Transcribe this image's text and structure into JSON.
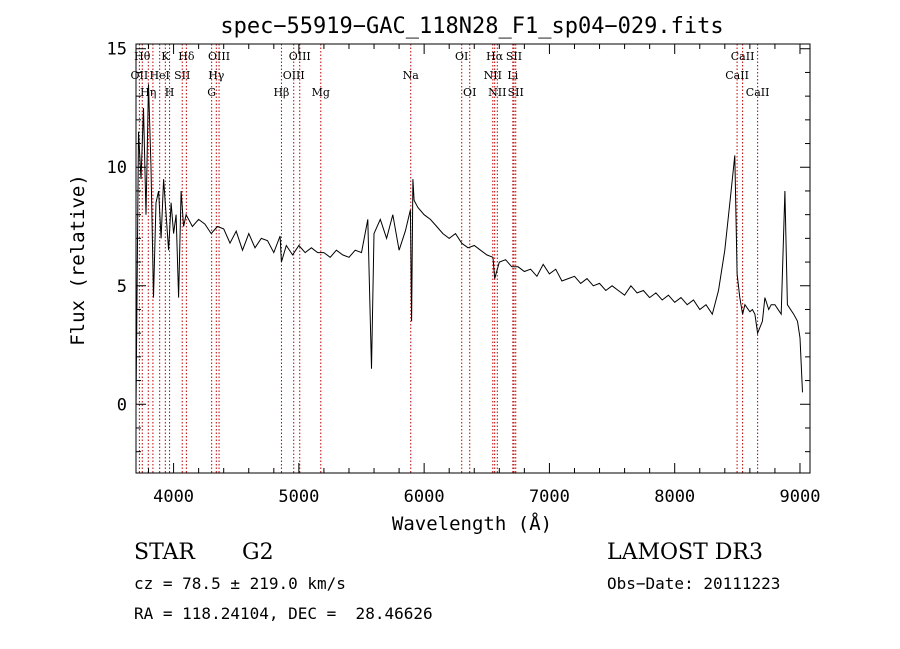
{
  "chart_data": {
    "type": "line",
    "title": "spec−55919−GAC_118N28_F1_sp04−029.fits",
    "xlabel": "Wavelength (Å)",
    "ylabel": "Flux (relative)",
    "xlim": [
      3700,
      9080
    ],
    "ylim": [
      -2.9,
      15.2
    ],
    "x_ticks": [
      4000,
      5000,
      6000,
      7000,
      8000,
      9000
    ],
    "x_tick_labels": [
      "4000",
      "5000",
      "6000",
      "7000",
      "8000",
      "9000"
    ],
    "y_ticks": [
      0,
      5,
      10,
      15
    ],
    "y_tick_labels": [
      "0",
      "5",
      "10",
      "15"
    ],
    "grid": false,
    "series": [
      {
        "x": [
          3700,
          3720,
          3740,
          3760,
          3780,
          3800,
          3820,
          3840,
          3860,
          3880,
          3900,
          3920,
          3940,
          3960,
          3980,
          4000,
          4020,
          4040,
          4060,
          4080,
          4100,
          4150,
          4200,
          4250,
          4300,
          4350,
          4400,
          4450,
          4500,
          4550,
          4600,
          4650,
          4700,
          4750,
          4800,
          4850,
          4861,
          4900,
          4950,
          5000,
          5050,
          5100,
          5150,
          5200,
          5250,
          5300,
          5350,
          5400,
          5450,
          5500,
          5550,
          5580,
          5600,
          5650,
          5700,
          5750,
          5800,
          5850,
          5890,
          5900,
          5910,
          5920,
          5950,
          6000,
          6050,
          6100,
          6150,
          6200,
          6250,
          6300,
          6350,
          6400,
          6450,
          6500,
          6550,
          6563,
          6600,
          6650,
          6700,
          6750,
          6800,
          6850,
          6900,
          6950,
          7000,
          7050,
          7100,
          7150,
          7200,
          7250,
          7300,
          7350,
          7400,
          7450,
          7500,
          7550,
          7600,
          7650,
          7700,
          7750,
          7800,
          7850,
          7900,
          7950,
          8000,
          8050,
          8100,
          8150,
          8200,
          8250,
          8300,
          8350,
          8400,
          8450,
          8480,
          8498,
          8520,
          8542,
          8560,
          8600,
          8620,
          8640,
          8662,
          8700,
          8720,
          8750,
          8770,
          8800,
          8850,
          8880,
          8900,
          8950,
          8980,
          9000,
          9020
        ],
        "y": [
          -0.2,
          11.5,
          9.5,
          12.5,
          8.0,
          13.5,
          10.0,
          4.5,
          8.5,
          9.0,
          7.0,
          9.5,
          8.0,
          6.5,
          8.5,
          7.2,
          8.0,
          4.5,
          9.0,
          7.5,
          8.0,
          7.5,
          7.8,
          7.6,
          7.2,
          7.5,
          7.4,
          6.8,
          7.3,
          6.5,
          7.2,
          6.6,
          7.0,
          6.9,
          6.4,
          7.1,
          6.0,
          6.7,
          6.3,
          6.7,
          6.4,
          6.6,
          6.4,
          6.4,
          6.2,
          6.5,
          6.3,
          6.2,
          6.5,
          6.4,
          7.8,
          1.5,
          7.2,
          7.8,
          7.0,
          8.0,
          6.5,
          7.3,
          8.2,
          3.5,
          9.5,
          8.6,
          8.3,
          8.0,
          7.8,
          7.5,
          7.2,
          7.0,
          7.2,
          6.8,
          6.6,
          6.7,
          6.5,
          6.3,
          6.2,
          5.3,
          6.0,
          6.1,
          5.8,
          5.8,
          5.6,
          5.7,
          5.4,
          5.9,
          5.5,
          5.7,
          5.2,
          5.3,
          5.4,
          5.1,
          5.3,
          5.0,
          5.1,
          4.8,
          5.0,
          4.8,
          4.6,
          5.0,
          4.7,
          4.8,
          4.5,
          4.7,
          4.4,
          4.6,
          4.3,
          4.5,
          4.2,
          4.4,
          4.0,
          4.2,
          3.8,
          4.8,
          6.5,
          9.0,
          10.5,
          5.5,
          4.5,
          3.8,
          4.2,
          3.9,
          4.0,
          3.8,
          3.0,
          3.5,
          4.5,
          4.0,
          4.2,
          4.2,
          3.8,
          9.0,
          4.2,
          3.8,
          3.5,
          2.8,
          0.5
        ]
      }
    ],
    "lines": [
      {
        "w": 3727,
        "label": "OII",
        "row": 1
      },
      {
        "w": 3750,
        "label": "Hθ",
        "row": 0
      },
      {
        "w": 3798,
        "label": "Hη",
        "row": 2
      },
      {
        "w": 3835,
        "label": "",
        "row": -1
      },
      {
        "w": 3889,
        "label": "HeI",
        "row": 1
      },
      {
        "w": 3934,
        "label": "K",
        "row": 0
      },
      {
        "w": 3968,
        "label": "H",
        "row": 2
      },
      {
        "w": 4069,
        "label": "SII",
        "row": 1
      },
      {
        "w": 4102,
        "label": "Hδ",
        "row": 0
      },
      {
        "w": 4304,
        "label": "G",
        "row": 2
      },
      {
        "w": 4341,
        "label": "Hγ",
        "row": 1
      },
      {
        "w": 4363,
        "label": "OIII",
        "row": 0
      },
      {
        "w": 4861,
        "label": "Hβ",
        "row": 2
      },
      {
        "w": 4959,
        "label": "OIII",
        "row": 1
      },
      {
        "w": 5007,
        "label": "OIII",
        "row": 0
      },
      {
        "w": 5175,
        "label": "Mg",
        "row": 2
      },
      {
        "w": 5893,
        "label": "Na",
        "row": 1
      },
      {
        "w": 6300,
        "label": "OI",
        "row": 0
      },
      {
        "w": 6364,
        "label": "OI",
        "row": 2
      },
      {
        "w": 6548,
        "label": "NII",
        "row": 1
      },
      {
        "w": 6563,
        "label": "Hα",
        "row": 0
      },
      {
        "w": 6584,
        "label": "NII",
        "row": 2
      },
      {
        "w": 6708,
        "label": "Li",
        "row": 1
      },
      {
        "w": 6717,
        "label": "SII",
        "row": 0
      },
      {
        "w": 6731,
        "label": "SII",
        "row": 2
      },
      {
        "w": 8498,
        "label": "CaII",
        "row": 1
      },
      {
        "w": 8542,
        "label": "CaII",
        "row": 0
      },
      {
        "w": 8662,
        "label": "CaII",
        "row": 2
      }
    ],
    "line_color": "#c00000",
    "series_color": "#000000"
  },
  "info": {
    "object_class": "STAR",
    "subclass": "G2",
    "survey": "LAMOST DR3",
    "redshift": "cz = 78.5 ± 219.0 km/s",
    "obs_date": "Obs−Date: 20111223",
    "coords": "RA = 118.24104, DEC =  28.46626"
  }
}
